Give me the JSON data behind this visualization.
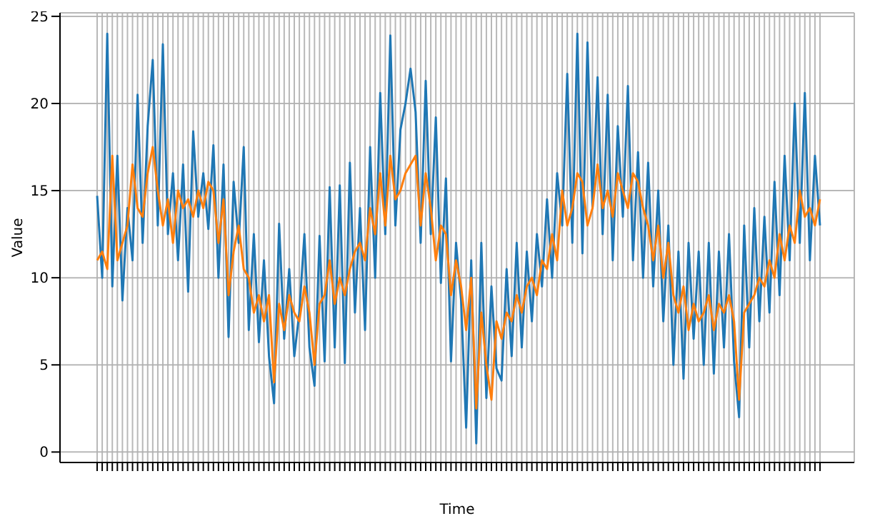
{
  "chart_data": {
    "type": "line",
    "xlabel": "Time",
    "ylabel": "Value",
    "categories": [
      null,
      null,
      null,
      null,
      null,
      null,
      null,
      null,
      null,
      null,
      null,
      null,
      null,
      null,
      null,
      null,
      null,
      null,
      null,
      null,
      null,
      null,
      null,
      null,
      null,
      null,
      null,
      null,
      null,
      null,
      null,
      null,
      null,
      null,
      null,
      null,
      null,
      null,
      null,
      null,
      null,
      null,
      null,
      null,
      null,
      null,
      null,
      null,
      null,
      null,
      null,
      null,
      null,
      null,
      null,
      null,
      null,
      null,
      null,
      null,
      null,
      null,
      null,
      null,
      null,
      null,
      null,
      null,
      null,
      null,
      null,
      null,
      null,
      null,
      null,
      null,
      null,
      null,
      null,
      null,
      null,
      null,
      null,
      null,
      null,
      null,
      null,
      null,
      null,
      null,
      null,
      null,
      null,
      null,
      null,
      null,
      null,
      null,
      null,
      null,
      null,
      null,
      null,
      null,
      null,
      null,
      null,
      null,
      null,
      null,
      null,
      null,
      null,
      null,
      null,
      null,
      null,
      null,
      null,
      null,
      null,
      null,
      null,
      null,
      null,
      null,
      null,
      null,
      null,
      null,
      null,
      null,
      null,
      null,
      null,
      null,
      null,
      null,
      null,
      null,
      null,
      null,
      null,
      null
    ],
    "series": [
      {
        "color": "#1f77b4",
        "values": [
          14.7,
          10,
          24,
          9.5,
          17,
          8.7,
          14,
          11,
          20.5,
          12,
          18.7,
          22.5,
          13,
          23.4,
          12.5,
          16,
          11,
          16.5,
          9.2,
          18.4,
          13.5,
          16,
          12.8,
          17.6,
          10,
          16.5,
          6.6,
          15.5,
          12,
          17.5,
          7,
          12.5,
          6.3,
          11,
          5.5,
          2.8,
          13.1,
          6.5,
          10.5,
          5.5,
          8,
          12.5,
          6,
          3.8,
          12.4,
          5.2,
          15.2,
          6,
          15.3,
          5.1,
          16.6,
          8,
          14,
          7,
          17.5,
          10,
          20.6,
          12.5,
          23.9,
          13,
          18.5,
          20,
          22,
          19.5,
          12,
          21.3,
          12.5,
          19.2,
          9.7,
          15.7,
          5.2,
          12,
          8.7,
          1.4,
          11,
          0.5,
          12,
          3.1,
          9.5,
          4.8,
          4.1,
          10.5,
          5.5,
          12,
          6,
          11.5,
          7.5,
          12.5,
          9.5,
          14.5,
          10,
          16,
          13,
          21.7,
          12,
          24,
          11.4,
          23.5,
          14,
          21.5,
          12.5,
          20.5,
          11,
          18.7,
          13.5,
          21,
          11,
          17.2,
          10,
          16.6,
          9.5,
          15,
          7.5,
          13,
          5,
          11.5,
          4.2,
          12,
          6.5,
          11.5,
          5,
          12,
          4.5,
          11.5,
          6,
          12.5,
          5.2,
          2,
          13,
          6,
          14,
          7.5,
          13.5,
          8,
          15.5,
          9,
          17,
          11,
          20,
          12,
          20.6,
          11,
          17,
          13
        ]
      },
      {
        "color": "#ff7f0e",
        "values": [
          11,
          11.5,
          10.5,
          17,
          11,
          12,
          13,
          16.5,
          14,
          13.5,
          16,
          17.5,
          15,
          13,
          14.5,
          12,
          15,
          14,
          14.5,
          13.5,
          15,
          14,
          15.5,
          15,
          12,
          14.5,
          9,
          11.5,
          13,
          10.5,
          10,
          8,
          9,
          7.5,
          9,
          4,
          8.5,
          7,
          9,
          8,
          7.5,
          9.5,
          8,
          5,
          8.5,
          9,
          11,
          8.5,
          10,
          9,
          10.5,
          11.5,
          12,
          11,
          14,
          12.5,
          16,
          13,
          17,
          14.5,
          15,
          16,
          16.5,
          17,
          13,
          16,
          14,
          11,
          13,
          12.5,
          9,
          11,
          9.5,
          7,
          10,
          2.5,
          8,
          5,
          3,
          7.5,
          6.5,
          8,
          7.5,
          9,
          8,
          9.5,
          10,
          9,
          11,
          10.5,
          12.5,
          11,
          15,
          13,
          14,
          16,
          15.5,
          13,
          14,
          16.5,
          14,
          15,
          13.5,
          16,
          15,
          14,
          16,
          15.5,
          14,
          13,
          11,
          13,
          10,
          12,
          9,
          8,
          9.5,
          7,
          8.5,
          7.5,
          8,
          9,
          7,
          8.5,
          8,
          9,
          7.5,
          3,
          8,
          8.5,
          9,
          10,
          9.5,
          11,
          10,
          12.5,
          11,
          13,
          12,
          15,
          13.5,
          14,
          13,
          14.5
        ]
      }
    ],
    "ylim": [
      -0.6,
      25.2
    ],
    "yticks": [
      0,
      5,
      10,
      15,
      20,
      25
    ],
    "grid": true
  }
}
